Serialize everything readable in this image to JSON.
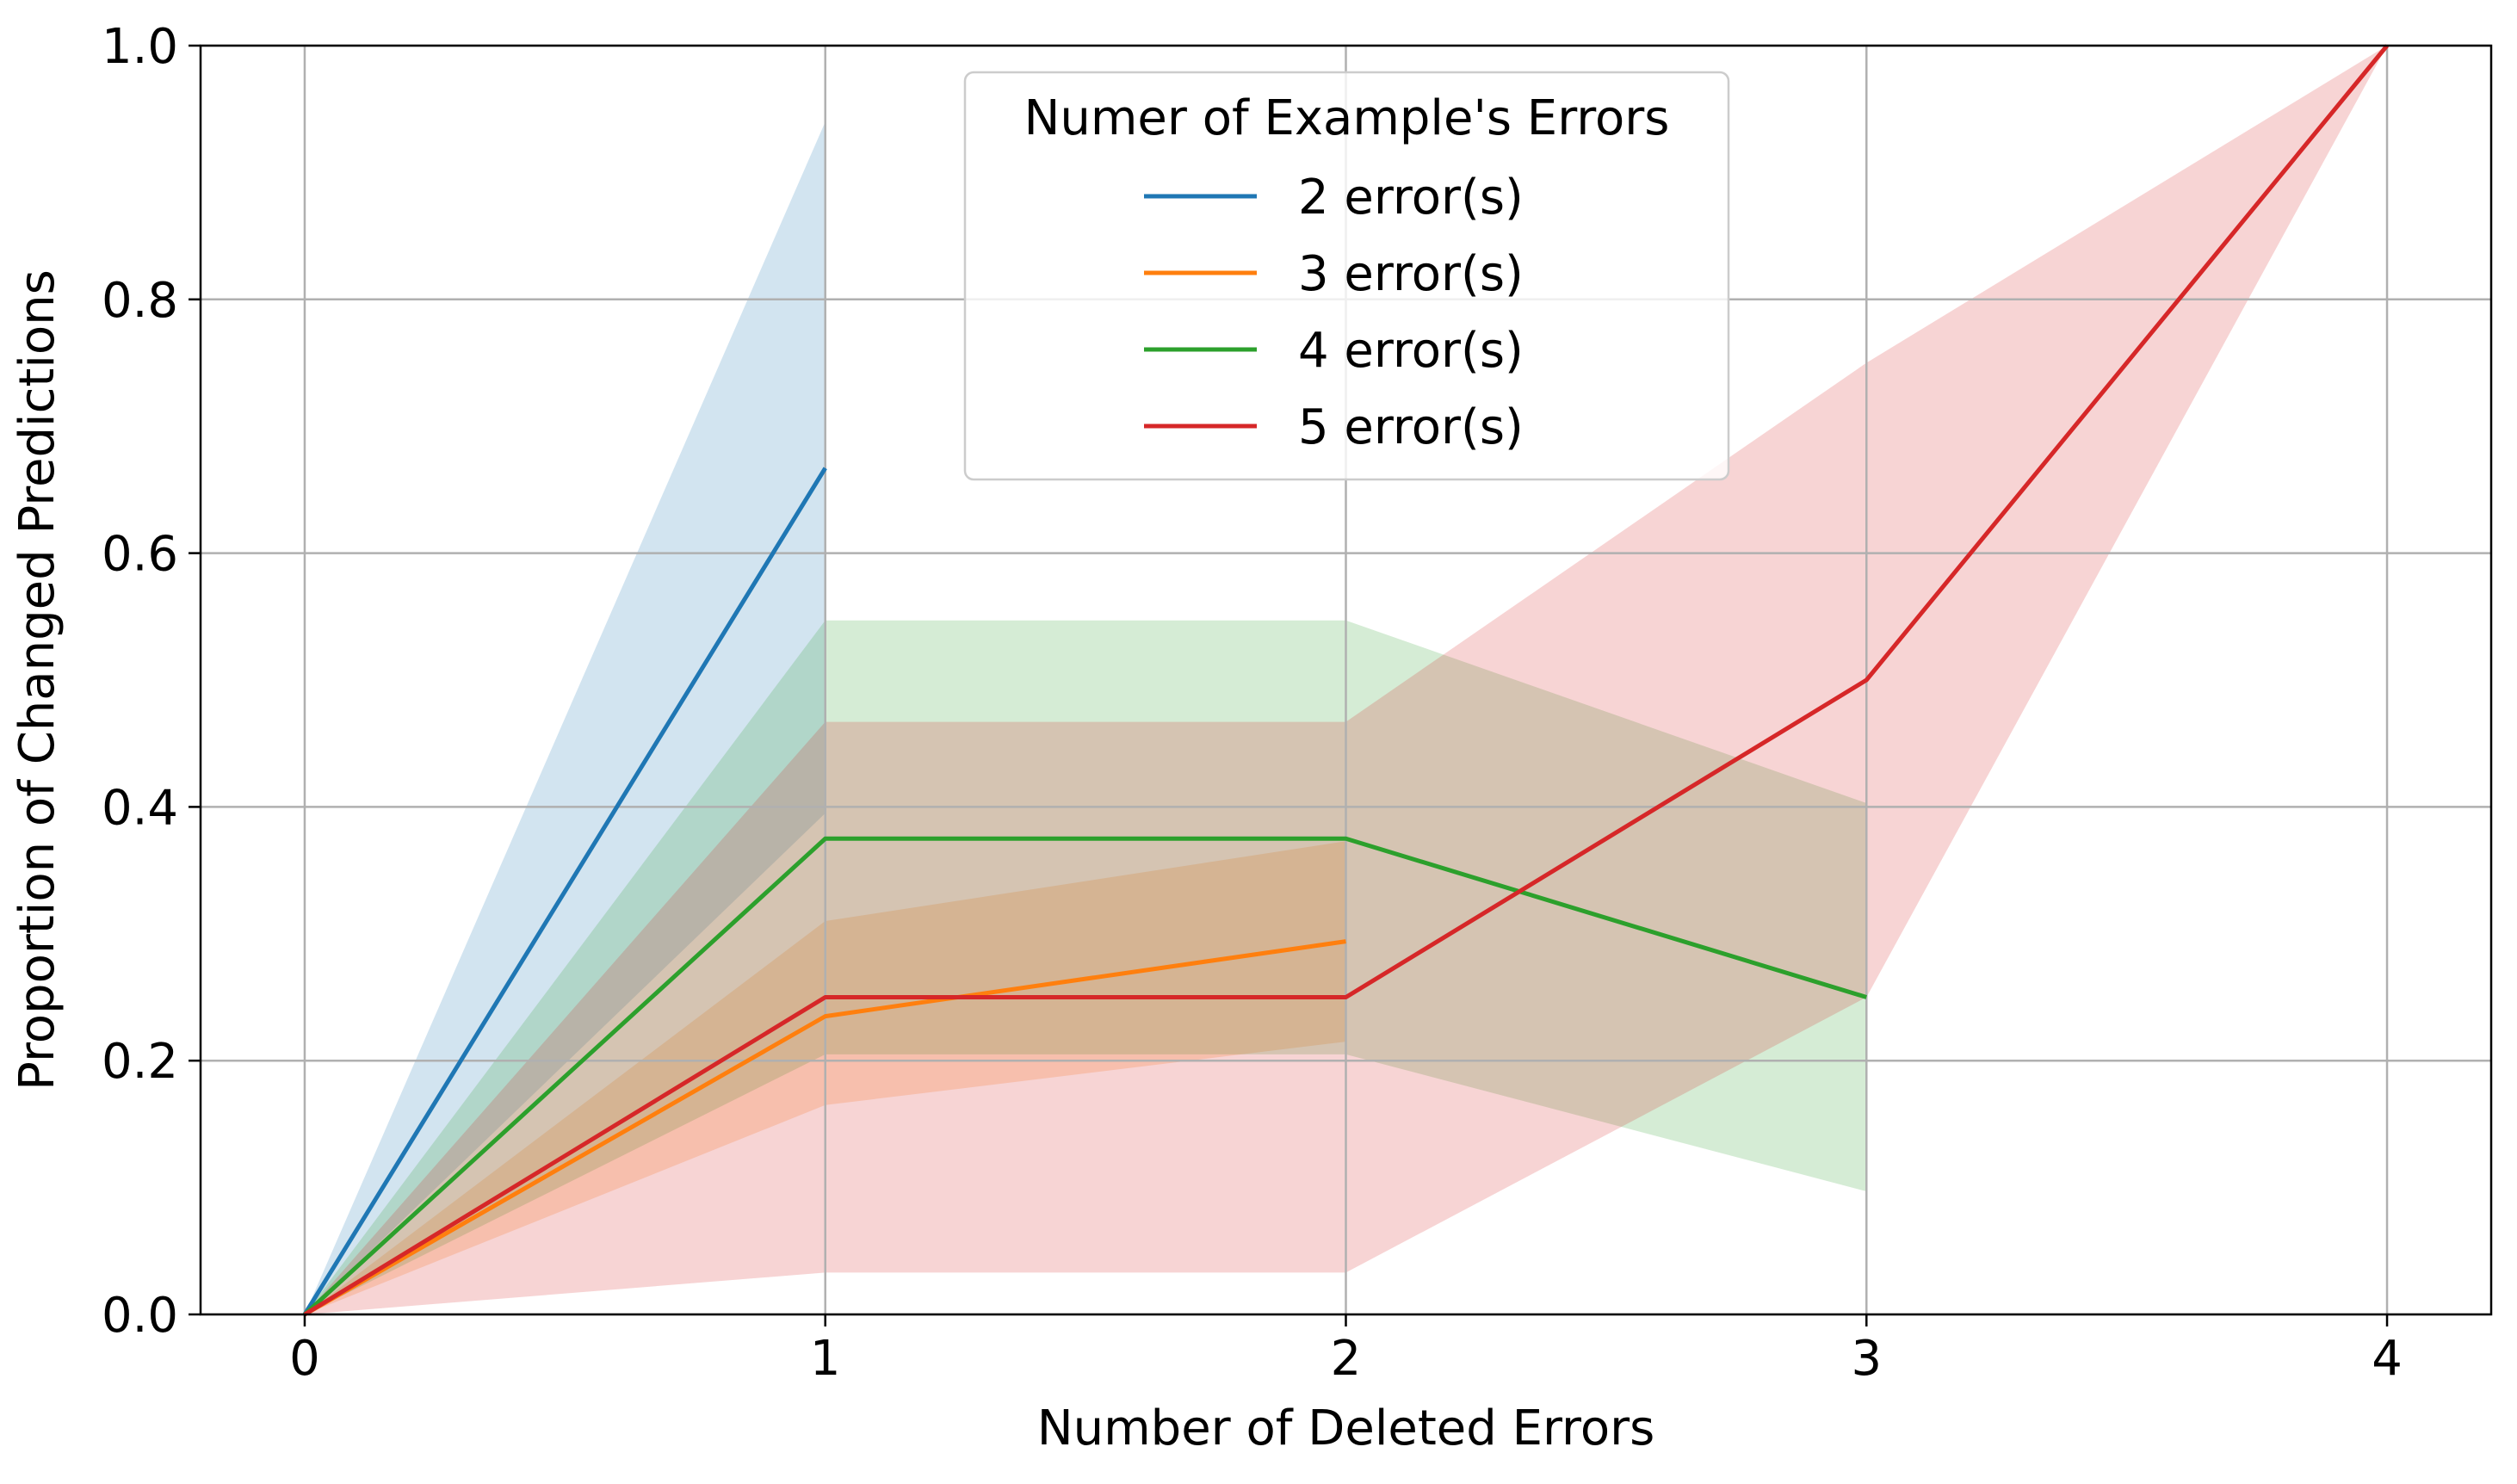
{
  "chart_data": {
    "type": "line",
    "title": "",
    "xlabel": "Number of Deleted Errors",
    "ylabel": "Proportion of Changed Predictions",
    "xlim": [
      -0.2,
      4.2
    ],
    "ylim": [
      0.0,
      1.0
    ],
    "xticks": [
      0,
      1,
      2,
      3,
      4
    ],
    "xtick_labels": [
      "0",
      "1",
      "2",
      "3",
      "4"
    ],
    "yticks": [
      0.0,
      0.2,
      0.4,
      0.6,
      0.8,
      1.0
    ],
    "ytick_labels": [
      "0.0",
      "0.2",
      "0.4",
      "0.6",
      "0.8",
      "1.0"
    ],
    "grid": true,
    "legend": {
      "title": "Numer of Example's Errors",
      "placement": "upper center"
    },
    "series": [
      {
        "name": "2 error(s)",
        "color": "#1f77b4",
        "x": [
          0,
          1
        ],
        "y": [
          0.0,
          0.667
        ],
        "lower": [
          0.0,
          0.395
        ],
        "upper": [
          0.0,
          0.94
        ]
      },
      {
        "name": "3 error(s)",
        "color": "#ff7f0e",
        "x": [
          0,
          1,
          2
        ],
        "y": [
          0.0,
          0.235,
          0.294
        ],
        "lower": [
          0.0,
          0.165,
          0.215
        ],
        "upper": [
          0.0,
          0.31,
          0.373
        ]
      },
      {
        "name": "4 error(s)",
        "color": "#2ca02c",
        "x": [
          0,
          1,
          2,
          3
        ],
        "y": [
          0.0,
          0.375,
          0.375,
          0.25
        ],
        "lower": [
          0.0,
          0.205,
          0.205,
          0.097
        ],
        "upper": [
          0.0,
          0.547,
          0.547,
          0.403
        ]
      },
      {
        "name": "5 error(s)",
        "color": "#d62728",
        "x": [
          0,
          1,
          2,
          3,
          4
        ],
        "y": [
          0.0,
          0.25,
          0.25,
          0.5,
          1.0
        ],
        "lower": [
          0.0,
          0.033,
          0.033,
          0.25,
          1.0
        ],
        "upper": [
          0.0,
          0.467,
          0.467,
          0.75,
          1.0
        ]
      }
    ]
  }
}
